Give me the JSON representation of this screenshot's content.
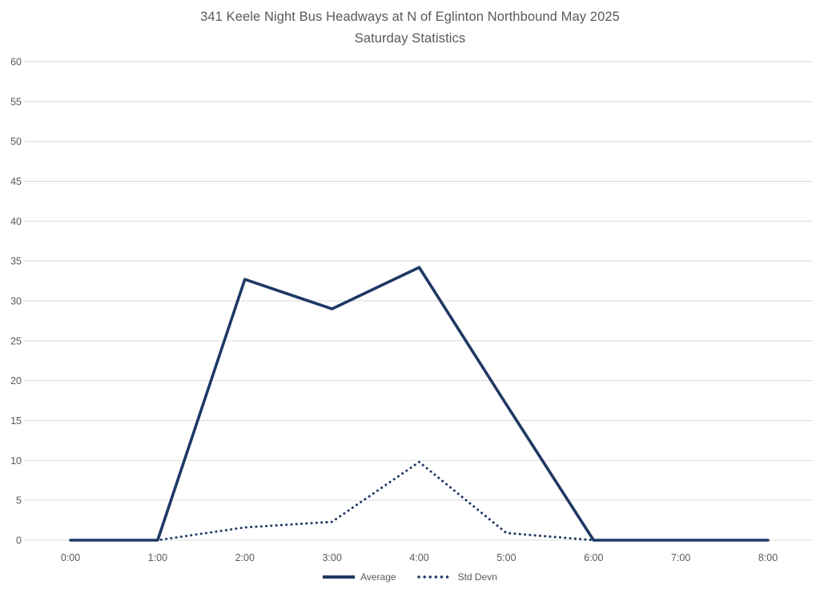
{
  "chart_data": {
    "type": "line",
    "title": "341 Keele Night Bus Headways at N of Eglinton Northbound May 2025",
    "subtitle": "Saturday Statistics",
    "categories": [
      "0:00",
      "1:00",
      "2:00",
      "3:00",
      "4:00",
      "5:00",
      "6:00",
      "7:00",
      "8:00"
    ],
    "series": [
      {
        "name": "Average",
        "style": "solid",
        "values": [
          0,
          0,
          32.7,
          29,
          34.2,
          17,
          0,
          0,
          0
        ]
      },
      {
        "name": "Std Devn",
        "style": "dotted",
        "values": [
          0,
          0,
          1.6,
          2.3,
          9.8,
          0.9,
          0,
          0,
          0
        ]
      }
    ],
    "xlabel": "",
    "ylabel": "",
    "ylim": [
      0,
      60
    ],
    "ytick_step": 5,
    "grid": true,
    "legend_position": "bottom",
    "colors": {
      "line": "#1f3864",
      "grid": "#d9d9d9",
      "text": "#595959",
      "background": "#ffffff"
    }
  }
}
